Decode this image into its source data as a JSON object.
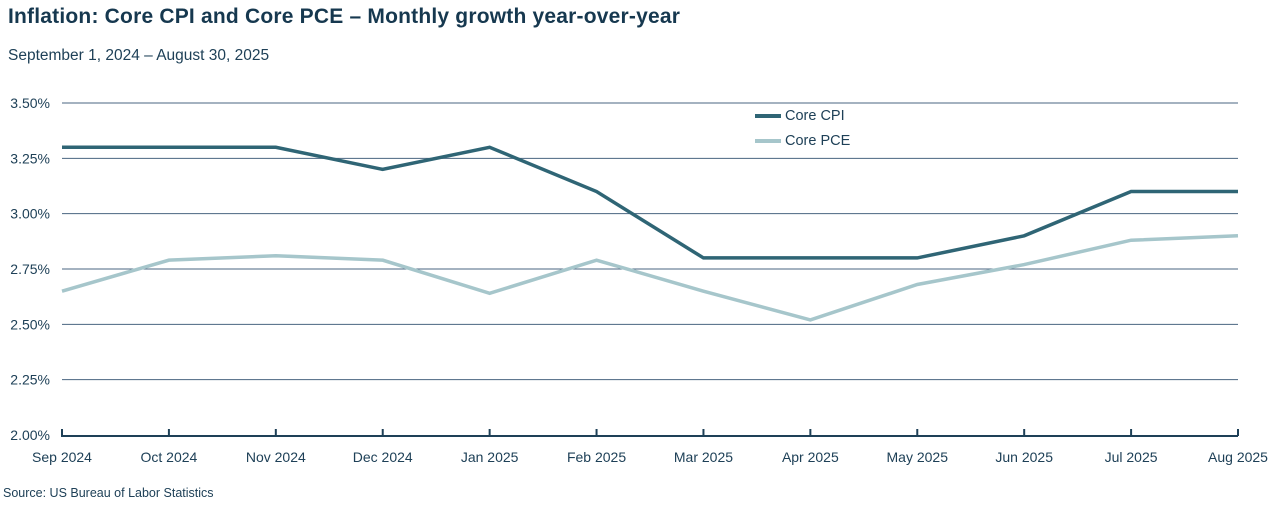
{
  "header": {
    "title": "Inflation: Core CPI and Core PCE – Monthly growth year-over-year",
    "subtitle": "September 1, 2024 – August 30, 2025"
  },
  "source": "Source: US Bureau of Labor Statistics",
  "colors": {
    "text_navy": "#1E4057",
    "title_navy": "#16384F",
    "gridline": "#4A6580",
    "core_cpi": "#2F6575",
    "core_pce": "#A6C6CB"
  },
  "chart_data": {
    "type": "line",
    "title": "Inflation: Core CPI and Core PCE – Monthly growth year-over-year",
    "subtitle": "September 1, 2024 – August 30, 2025",
    "categories": [
      "Sep 2024",
      "Oct 2024",
      "Nov 2024",
      "Dec 2024",
      "Jan 2025",
      "Feb 2025",
      "Mar 2025",
      "Apr 2025",
      "May 2025",
      "Jun 2025",
      "Jul 2025",
      "Aug 2025"
    ],
    "series": [
      {
        "name": "Core CPI",
        "color": "#2F6575",
        "values": [
          3.3,
          3.3,
          3.3,
          3.2,
          3.3,
          3.1,
          2.8,
          2.8,
          2.8,
          2.9,
          3.1,
          3.1
        ]
      },
      {
        "name": "Core PCE",
        "color": "#A6C6CB",
        "values": [
          2.65,
          2.79,
          2.81,
          2.79,
          2.64,
          2.79,
          2.65,
          2.52,
          2.68,
          2.77,
          2.88,
          2.9
        ]
      }
    ],
    "ylim": [
      2.0,
      3.5
    ],
    "yticks": [
      "3.50%",
      "3.25%",
      "3.00%",
      "2.75%",
      "2.50%",
      "2.25%",
      "2.00%"
    ],
    "ytick_step": 0.25,
    "xlabel": "",
    "ylabel": "",
    "grid": "horizontal",
    "legend_position": "top-center-right"
  }
}
